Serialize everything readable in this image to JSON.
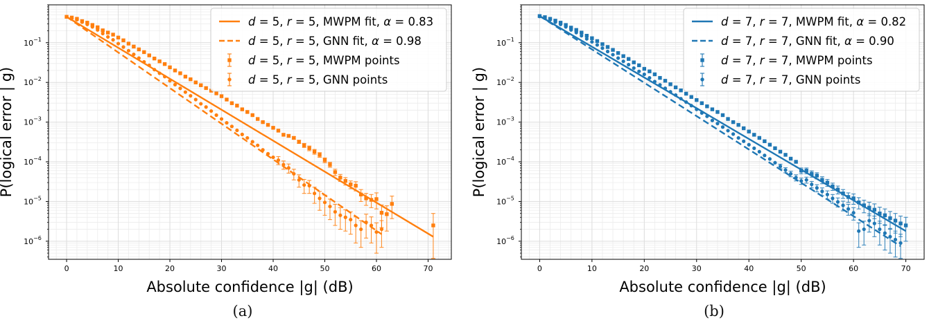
{
  "captions": [
    "(a)",
    "(b)"
  ],
  "chart_data": [
    {
      "type": "line",
      "color": "#ff7f0e",
      "xlabel": "Absolute confidence |g| (dB)",
      "ylabel": "P(logical error | g)",
      "xlim": [
        -3.5,
        74.5
      ],
      "ylim": [
        3.5e-07,
        0.9
      ],
      "yscale": "log",
      "xticks": [
        0,
        10,
        20,
        30,
        40,
        50,
        60,
        70
      ],
      "yticks": [
        1e-06,
        1e-05,
        0.0001,
        0.001,
        0.01,
        0.1
      ],
      "grid": true,
      "legend_position": "top-right",
      "legend": [
        {
          "label": "d = 5, r = 5, MWPM fit, α = 0.83",
          "parts": [
            "d",
            " = 5, ",
            "r",
            " = 5, MWPM fit, ",
            "α",
            " = 0.83"
          ],
          "style": "solid"
        },
        {
          "label": "d = 5, r = 5, GNN fit, α = 0.98",
          "parts": [
            "d",
            " = 5, ",
            "r",
            " = 5, GNN fit, ",
            "α",
            " = 0.98"
          ],
          "style": "dashed"
        },
        {
          "label": "d = 5, r = 5, MWPM points",
          "parts": [
            "d",
            " = 5, ",
            "r",
            " = 5, MWPM points"
          ],
          "style": "square"
        },
        {
          "label": "d = 5, r = 5, GNN points",
          "parts": [
            "d",
            " = 5, ",
            "r",
            " = 5, GNN points"
          ],
          "style": "circle"
        }
      ],
      "series": [
        {
          "kind": "fit",
          "style": "solid",
          "x": [
            0,
            71
          ],
          "y": [
            0.45,
            1.3e-06
          ]
        },
        {
          "kind": "fit",
          "style": "dashed",
          "x": [
            0,
            61
          ],
          "y": [
            0.45,
            1.5e-06
          ]
        },
        {
          "kind": "points",
          "marker": "square",
          "x": [
            0,
            1,
            2,
            3,
            4,
            5,
            6,
            7,
            8,
            9,
            10,
            11,
            12,
            13,
            14,
            15,
            16,
            17,
            18,
            19,
            20,
            21,
            22,
            23,
            24,
            25,
            26,
            27,
            28,
            29,
            30,
            31,
            32,
            33,
            34,
            35,
            36,
            37,
            38,
            39,
            40,
            41,
            42,
            43,
            44,
            45,
            46,
            47,
            48,
            49,
            50,
            51,
            52,
            53,
            54,
            55,
            56,
            57,
            58,
            59,
            60,
            61,
            62,
            63,
            71
          ],
          "y": [
            0.45,
            0.43,
            0.4,
            0.35,
            0.32,
            0.28,
            0.245,
            0.205,
            0.18,
            0.16,
            0.135,
            0.115,
            0.095,
            0.08,
            0.068,
            0.058,
            0.048,
            0.04,
            0.034,
            0.029,
            0.024,
            0.02,
            0.017,
            0.014,
            0.012,
            0.01,
            0.0085,
            0.0072,
            0.0062,
            0.0053,
            0.0045,
            0.0037,
            0.003,
            0.0026,
            0.0021,
            0.0018,
            0.0015,
            0.0012,
            0.001,
            0.00085,
            0.00072,
            0.00061,
            0.00048,
            0.00045,
            0.0004,
            0.00032,
            0.00026,
            0.00022,
            0.00018,
            0.00015,
            0.00011,
            8.5e-05,
            5.5e-05,
            4e-05,
            3.3e-05,
            2.7e-05,
            2.5e-05,
            1.5e-05,
            1.2e-05,
            1.1e-05,
            1.15e-05,
            5.2e-06,
            4.8e-06,
            8.7e-06,
            2.5e-06
          ],
          "err": [
            0,
            0,
            0,
            0,
            0,
            0,
            0,
            0,
            0,
            0,
            0,
            0,
            0,
            0,
            0,
            0,
            0,
            0,
            0,
            0,
            0,
            0,
            0,
            0,
            0,
            0,
            0,
            0,
            0,
            0,
            0,
            0,
            0,
            0,
            0,
            0,
            0,
            0,
            0,
            0,
            0,
            0,
            0,
            3e-05,
            3e-05,
            3e-05,
            3e-05,
            3e-05,
            2.5e-05,
            2e-05,
            1.5e-05,
            1.2e-05,
            1e-05,
            8e-06,
            7e-06,
            6e-06,
            6.5e-06,
            5e-06,
            4e-06,
            4e-06,
            5e-06,
            3e-06,
            3e-06,
            5e-06,
            2.5e-06
          ]
        },
        {
          "kind": "points",
          "marker": "circle",
          "x": [
            0,
            1,
            2,
            3,
            4,
            5,
            6,
            7,
            8,
            9,
            10,
            11,
            12,
            13,
            14,
            15,
            16,
            17,
            18,
            19,
            20,
            21,
            22,
            23,
            24,
            25,
            26,
            27,
            28,
            29,
            30,
            31,
            32,
            33,
            34,
            35,
            36,
            37,
            38,
            39,
            40,
            41,
            42,
            43,
            44,
            45,
            46,
            47,
            48,
            49,
            50,
            51,
            52,
            53,
            54,
            55,
            56,
            57,
            58,
            59,
            60,
            61
          ],
          "y": [
            0.45,
            0.42,
            0.38,
            0.33,
            0.29,
            0.25,
            0.21,
            0.17,
            0.14,
            0.118,
            0.095,
            0.078,
            0.063,
            0.051,
            0.041,
            0.033,
            0.027,
            0.021,
            0.017,
            0.014,
            0.011,
            0.0088,
            0.0071,
            0.0057,
            0.0046,
            0.0037,
            0.0029,
            0.0024,
            0.0019,
            0.0015,
            0.0012,
            0.00096,
            0.00078,
            0.00062,
            0.00049,
            0.0004,
            0.00032,
            0.00026,
            0.0002,
            0.00016,
            0.00013,
            0.00011,
            8.5e-05,
            7e-05,
            5e-05,
            3.5e-05,
            2.6e-05,
            2.5e-05,
            1.6e-05,
            1.2e-05,
            9.5e-06,
            7.5e-06,
            5.5e-06,
            4.5e-06,
            4e-06,
            3.5e-06,
            2.5e-06,
            2e-06,
            3e-06,
            2.5e-06,
            1.7e-06,
            2e-06
          ],
          "err": [
            0,
            0,
            0,
            0,
            0,
            0,
            0,
            0,
            0,
            0,
            0,
            0,
            0,
            0,
            0,
            0,
            0,
            0,
            0,
            0,
            0,
            0,
            0,
            0,
            0,
            0,
            0,
            0,
            0,
            0,
            0,
            0,
            0,
            0,
            0,
            0,
            0,
            0,
            0,
            0,
            0,
            2.5e-05,
            2e-05,
            1.8e-05,
            1.5e-05,
            1.2e-05,
            1e-05,
            9e-06,
            7e-06,
            6e-06,
            5e-06,
            4e-06,
            3e-06,
            2.5e-06,
            2.2e-06,
            2e-06,
            1.6e-06,
            1.3e-06,
            1.8e-06,
            1.6e-06,
            1.2e-06,
            1.3e-06
          ]
        }
      ]
    },
    {
      "type": "line",
      "color": "#1f77b4",
      "xlabel": "Absolute confidence |g| (dB)",
      "ylabel": "P(logical error | g)",
      "xlim": [
        -3.5,
        73.5
      ],
      "ylim": [
        3.5e-07,
        0.9
      ],
      "yscale": "log",
      "xticks": [
        0,
        10,
        20,
        30,
        40,
        50,
        60,
        70
      ],
      "yticks": [
        1e-06,
        1e-05,
        0.0001,
        0.001,
        0.01,
        0.1
      ],
      "grid": true,
      "legend_position": "top-right",
      "legend": [
        {
          "label": "d = 7, r = 7, MWPM fit, α = 0.82",
          "parts": [
            "d",
            " = 7, ",
            "r",
            " = 7, MWPM fit, ",
            "α",
            " = 0.82"
          ],
          "style": "solid"
        },
        {
          "label": "d = 7, r = 7, GNN fit, α = 0.90",
          "parts": [
            "d",
            " = 7, ",
            "r",
            " = 7, GNN fit, ",
            "α",
            " = 0.90"
          ],
          "style": "dashed"
        },
        {
          "label": "d = 7, r = 7, MWPM points",
          "parts": [
            "d",
            " = 7, ",
            "r",
            " = 7, MWPM points"
          ],
          "style": "square"
        },
        {
          "label": "d = 7, r = 7, GNN points",
          "parts": [
            "d",
            " = 7, ",
            "r",
            " = 7, GNN points"
          ],
          "style": "circle"
        }
      ],
      "series": [
        {
          "kind": "fit",
          "style": "solid",
          "x": [
            0,
            70
          ],
          "y": [
            0.47,
            1.8e-06
          ]
        },
        {
          "kind": "fit",
          "style": "dashed",
          "x": [
            0,
            69
          ],
          "y": [
            0.47,
            7.5e-07
          ]
        },
        {
          "kind": "points",
          "marker": "square",
          "x": [
            0,
            1,
            2,
            3,
            4,
            5,
            6,
            7,
            8,
            9,
            10,
            11,
            12,
            13,
            14,
            15,
            16,
            17,
            18,
            19,
            20,
            21,
            22,
            23,
            24,
            25,
            26,
            27,
            28,
            29,
            30,
            31,
            32,
            33,
            34,
            35,
            36,
            37,
            38,
            39,
            40,
            41,
            42,
            43,
            44,
            45,
            46,
            47,
            48,
            49,
            50,
            51,
            52,
            53,
            54,
            55,
            56,
            57,
            58,
            59,
            60,
            61,
            62,
            63,
            64,
            65,
            66,
            67,
            68,
            69,
            70
          ],
          "y": [
            0.47,
            0.44,
            0.4,
            0.36,
            0.32,
            0.28,
            0.24,
            0.21,
            0.18,
            0.15,
            0.13,
            0.11,
            0.092,
            0.078,
            0.066,
            0.055,
            0.046,
            0.039,
            0.032,
            0.027,
            0.022,
            0.019,
            0.016,
            0.013,
            0.011,
            0.009,
            0.0075,
            0.0063,
            0.0052,
            0.0043,
            0.0036,
            0.003,
            0.0025,
            0.0021,
            0.0018,
            0.0015,
            0.0012,
            0.001,
            0.00085,
            0.0007,
            0.00058,
            0.00048,
            0.0004,
            0.00033,
            0.00027,
            0.00022,
            0.00018,
            0.00015,
            0.00012,
            0.0001,
            6e-05,
            6e-05,
            5e-05,
            4.5e-05,
            3.5e-05,
            3e-05,
            2.4e-05,
            2e-05,
            1.6e-05,
            1.3e-05,
            1.2e-05,
            9.5e-06,
            8e-06,
            7e-06,
            6.2e-06,
            5e-06,
            4.5e-06,
            3.8e-06,
            3.3e-06,
            2.8e-06,
            2.5e-06
          ],
          "err": [
            0,
            0,
            0,
            0,
            0,
            0,
            0,
            0,
            0,
            0,
            0,
            0,
            0,
            0,
            0,
            0,
            0,
            0,
            0,
            0,
            0,
            0,
            0,
            0,
            0,
            0,
            0,
            0,
            0,
            0,
            0,
            0,
            0,
            0,
            0,
            0,
            0,
            0,
            0,
            0,
            0,
            0,
            0,
            0,
            0,
            0,
            0,
            0,
            0,
            0,
            1e-05,
            1e-05,
            9e-06,
            8e-06,
            7e-06,
            6e-06,
            5e-06,
            4.5e-06,
            4e-06,
            3.5e-06,
            3.5e-06,
            3e-06,
            2.8e-06,
            2.6e-06,
            2.5e-06,
            2.2e-06,
            2e-06,
            1.8e-06,
            1.7e-06,
            1.5e-06,
            1.5e-06
          ]
        },
        {
          "kind": "points",
          "marker": "circle",
          "x": [
            0,
            1,
            2,
            3,
            4,
            5,
            6,
            7,
            8,
            9,
            10,
            11,
            12,
            13,
            14,
            15,
            16,
            17,
            18,
            19,
            20,
            21,
            22,
            23,
            24,
            25,
            26,
            27,
            28,
            29,
            30,
            31,
            32,
            33,
            34,
            35,
            36,
            37,
            38,
            39,
            40,
            41,
            42,
            43,
            44,
            45,
            46,
            47,
            48,
            49,
            50,
            51,
            52,
            53,
            54,
            55,
            56,
            57,
            58,
            59,
            60,
            61,
            62,
            63,
            64,
            65,
            66,
            67,
            68,
            69
          ],
          "y": [
            0.46,
            0.42,
            0.38,
            0.33,
            0.29,
            0.25,
            0.21,
            0.18,
            0.15,
            0.125,
            0.105,
            0.088,
            0.073,
            0.06,
            0.05,
            0.041,
            0.034,
            0.028,
            0.023,
            0.019,
            0.016,
            0.013,
            0.0105,
            0.0087,
            0.0071,
            0.0058,
            0.0048,
            0.0039,
            0.0032,
            0.0026,
            0.0021,
            0.0017,
            0.0014,
            0.0011,
            0.00092,
            0.00075,
            0.00061,
            0.0005,
            0.0004,
            0.00033,
            0.00027,
            0.00022,
            0.00018,
            0.000145,
            0.000118,
            9.5e-05,
            7.7e-05,
            6.2e-05,
            5e-05,
            4e-05,
            3.3e-05,
            3.5e-05,
            2.7e-05,
            2.2e-05,
            1.8e-05,
            1.5e-05,
            1.2e-05,
            9.8e-06,
            8e-06,
            6.5e-06,
            5.2e-06,
            1.8e-06,
            2e-06,
            3.3e-06,
            2.8e-06,
            2e-06,
            1.6e-06,
            1.3e-06,
            1.1e-06,
            9e-07
          ],
          "err": [
            0,
            0,
            0,
            0,
            0,
            0,
            0,
            0,
            0,
            0,
            0,
            0,
            0,
            0,
            0,
            0,
            0,
            0,
            0,
            0,
            0,
            0,
            0,
            0,
            0,
            0,
            0,
            0,
            0,
            0,
            0,
            0,
            0,
            0,
            0,
            0,
            0,
            0,
            0,
            0,
            0,
            0,
            0,
            0,
            0,
            0,
            1e-05,
            9e-06,
            8e-06,
            7e-06,
            6e-06,
            6e-06,
            5e-06,
            4.5e-06,
            4e-06,
            3.5e-06,
            3e-06,
            2.5e-06,
            2.2e-06,
            2e-06,
            1.8e-06,
            1.1e-06,
            1.2e-06,
            1.6e-06,
            1.5e-06,
            1.2e-06,
            1e-06,
            8e-07,
            7e-07,
            6e-07
          ]
        }
      ]
    }
  ]
}
